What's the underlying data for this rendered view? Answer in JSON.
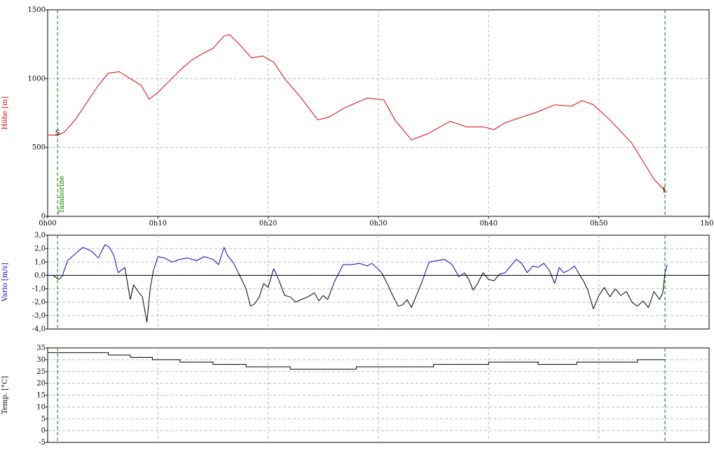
{
  "chart_data": [
    {
      "type": "line",
      "ylabel": "Höhe [m]",
      "ylim": [
        0,
        1500
      ],
      "yticks": [
        0,
        500,
        1000,
        1500
      ],
      "xlim_min": [
        0,
        60
      ],
      "xticks": [
        "0h00",
        "0h10",
        "0h20",
        "0h30",
        "0h40",
        "0h50",
        "1h00"
      ],
      "grid": true,
      "colors": {
        "series": "#e00000",
        "axis_label": "#cc0000"
      },
      "markers": [
        {
          "t": 0.9,
          "label": "Tamborine",
          "color": "#008000"
        },
        {
          "t": 56.0,
          "label": "",
          "color": "#008000"
        }
      ],
      "point_labels": [
        {
          "t": 0.9,
          "y": 590,
          "label": "S"
        },
        {
          "t": 56.0,
          "y": 195,
          "label": "L"
        }
      ],
      "series": [
        {
          "values_t": [
            0,
            0.9,
            1.5,
            2.5,
            3.5,
            4.5,
            5.5,
            6.5,
            7.5,
            8.5,
            9.2,
            10,
            11,
            12,
            13,
            14,
            15,
            16,
            16.5,
            17.5,
            18.5,
            19.5,
            20.5,
            21.5,
            23,
            24.5,
            25.5,
            27,
            29,
            30.5,
            31.5,
            33,
            34.5,
            36.5,
            38,
            39.5,
            40.5,
            41.5,
            43,
            44.5,
            46,
            47.5,
            48.5,
            49.5,
            51,
            53,
            55,
            56
          ],
          "values": [
            590,
            590,
            610,
            700,
            820,
            940,
            1040,
            1050,
            1000,
            950,
            850,
            900,
            980,
            1060,
            1130,
            1180,
            1220,
            1310,
            1320,
            1240,
            1150,
            1165,
            1120,
            1000,
            860,
            700,
            720,
            790,
            860,
            845,
            700,
            555,
            600,
            690,
            650,
            650,
            630,
            680,
            720,
            760,
            810,
            800,
            840,
            810,
            700,
            530,
            270,
            185
          ]
        }
      ]
    },
    {
      "type": "line",
      "ylabel": "Vario [m/s]",
      "ylim": [
        -4,
        3
      ],
      "yticks": [
        "-4,0",
        "-3,0",
        "-2,0",
        "-1,0",
        "0,0",
        "1,0",
        "2,0",
        "3,0"
      ],
      "yvals": [
        -4,
        -3,
        -2,
        -1,
        0,
        1,
        2,
        3
      ],
      "grid": true,
      "colors": {
        "positive": "#0000cc",
        "negative": "#000000",
        "axis_label": "#0000cc"
      },
      "series": [
        {
          "values_t": [
            0,
            0.5,
            1.0,
            1.3,
            1.8,
            2.5,
            3.2,
            4.0,
            4.6,
            5.2,
            5.6,
            6.0,
            6.4,
            7.0,
            7.5,
            7.8,
            8.2,
            8.6,
            9.0,
            9.3,
            9.6,
            10.0,
            10.6,
            11.3,
            12.0,
            12.7,
            13.5,
            14.2,
            15.0,
            15.5,
            16.0,
            16.3,
            16.8,
            17.3,
            18.0,
            18.4,
            18.8,
            19.2,
            19.6,
            20.0,
            20.5,
            21.0,
            21.5,
            22.0,
            22.5,
            23.0,
            23.6,
            24.2,
            24.6,
            25.0,
            25.4,
            26.0,
            26.8,
            27.5,
            28.3,
            29.0,
            29.4,
            29.8,
            30.3,
            30.8,
            31.3,
            31.8,
            32.2,
            32.6,
            33.0,
            33.4,
            34.0,
            34.6,
            35.3,
            36.0,
            36.7,
            37.3,
            37.8,
            38.2,
            38.6,
            39.0,
            39.5,
            40.0,
            40.5,
            41.0,
            41.5,
            42.0,
            42.5,
            43.0,
            43.5,
            44.0,
            44.5,
            45.0,
            45.5,
            46.0,
            46.4,
            46.8,
            47.3,
            47.8,
            48.2,
            48.6,
            49.0,
            49.5,
            50.0,
            50.5,
            51.0,
            51.5,
            52.0,
            52.5,
            53.0,
            53.5,
            54.0,
            54.5,
            55.0,
            55.5,
            55.8,
            56.0,
            56.2
          ],
          "values": [
            0,
            0,
            -0.3,
            -0.1,
            1.1,
            1.6,
            2.1,
            1.8,
            1.3,
            2.3,
            2.1,
            1.5,
            0.2,
            0.6,
            -1.8,
            -0.7,
            -1.2,
            -1.6,
            -3.5,
            -1.0,
            0.4,
            1.4,
            1.3,
            1.0,
            1.2,
            1.3,
            1.1,
            1.4,
            1.2,
            0.8,
            2.1,
            1.5,
            1.0,
            0.2,
            -1.0,
            -2.3,
            -2.1,
            -1.6,
            -0.6,
            -0.9,
            0.5,
            -0.4,
            -1.5,
            -1.6,
            -2.0,
            -1.8,
            -1.6,
            -1.3,
            -1.9,
            -1.5,
            -1.8,
            -0.5,
            0.8,
            0.8,
            0.9,
            0.7,
            0.9,
            0.6,
            0.2,
            -0.6,
            -1.5,
            -2.3,
            -2.2,
            -1.8,
            -2.4,
            -1.6,
            -0.4,
            1.0,
            1.1,
            1.2,
            0.8,
            -0.1,
            0.2,
            -0.3,
            -1.1,
            -0.6,
            0.2,
            -0.3,
            -0.4,
            0.1,
            0.2,
            0.7,
            1.2,
            0.9,
            0.2,
            0.7,
            0.6,
            0.9,
            0.4,
            -0.6,
            0.6,
            0.2,
            0.4,
            0.7,
            0.1,
            -0.4,
            -1.1,
            -2.5,
            -1.5,
            -0.9,
            -1.6,
            -1.0,
            -1.5,
            -1.2,
            -2.0,
            -2.3,
            -1.9,
            -2.4,
            -1.2,
            -1.8,
            -1.3,
            0.2,
            0.8
          ]
        }
      ]
    },
    {
      "type": "line",
      "ylabel": "Temp. [°C]",
      "ylim": [
        -5,
        35
      ],
      "yticks": [
        -5,
        0,
        5,
        10,
        15,
        20,
        25,
        30,
        35
      ],
      "grid": true,
      "colors": {
        "series": "#000000",
        "axis_label": "#000000"
      },
      "series": [
        {
          "values_t": [
            0,
            5.5,
            5.5,
            7.5,
            7.5,
            9.5,
            9.5,
            12.0,
            12.0,
            15.0,
            15.0,
            18.0,
            18.0,
            22.0,
            22.0,
            28.0,
            28.0,
            35.0,
            35.0,
            40.0,
            40.0,
            44.5,
            44.5,
            48.0,
            48.0,
            53.5,
            53.5,
            56.0
          ],
          "values": [
            33,
            33,
            32,
            32,
            31,
            31,
            30,
            30,
            29,
            29,
            28,
            28,
            27,
            27,
            26,
            26,
            27,
            27,
            28,
            28,
            29,
            29,
            28,
            28,
            29,
            29,
            30,
            30
          ]
        }
      ]
    }
  ]
}
